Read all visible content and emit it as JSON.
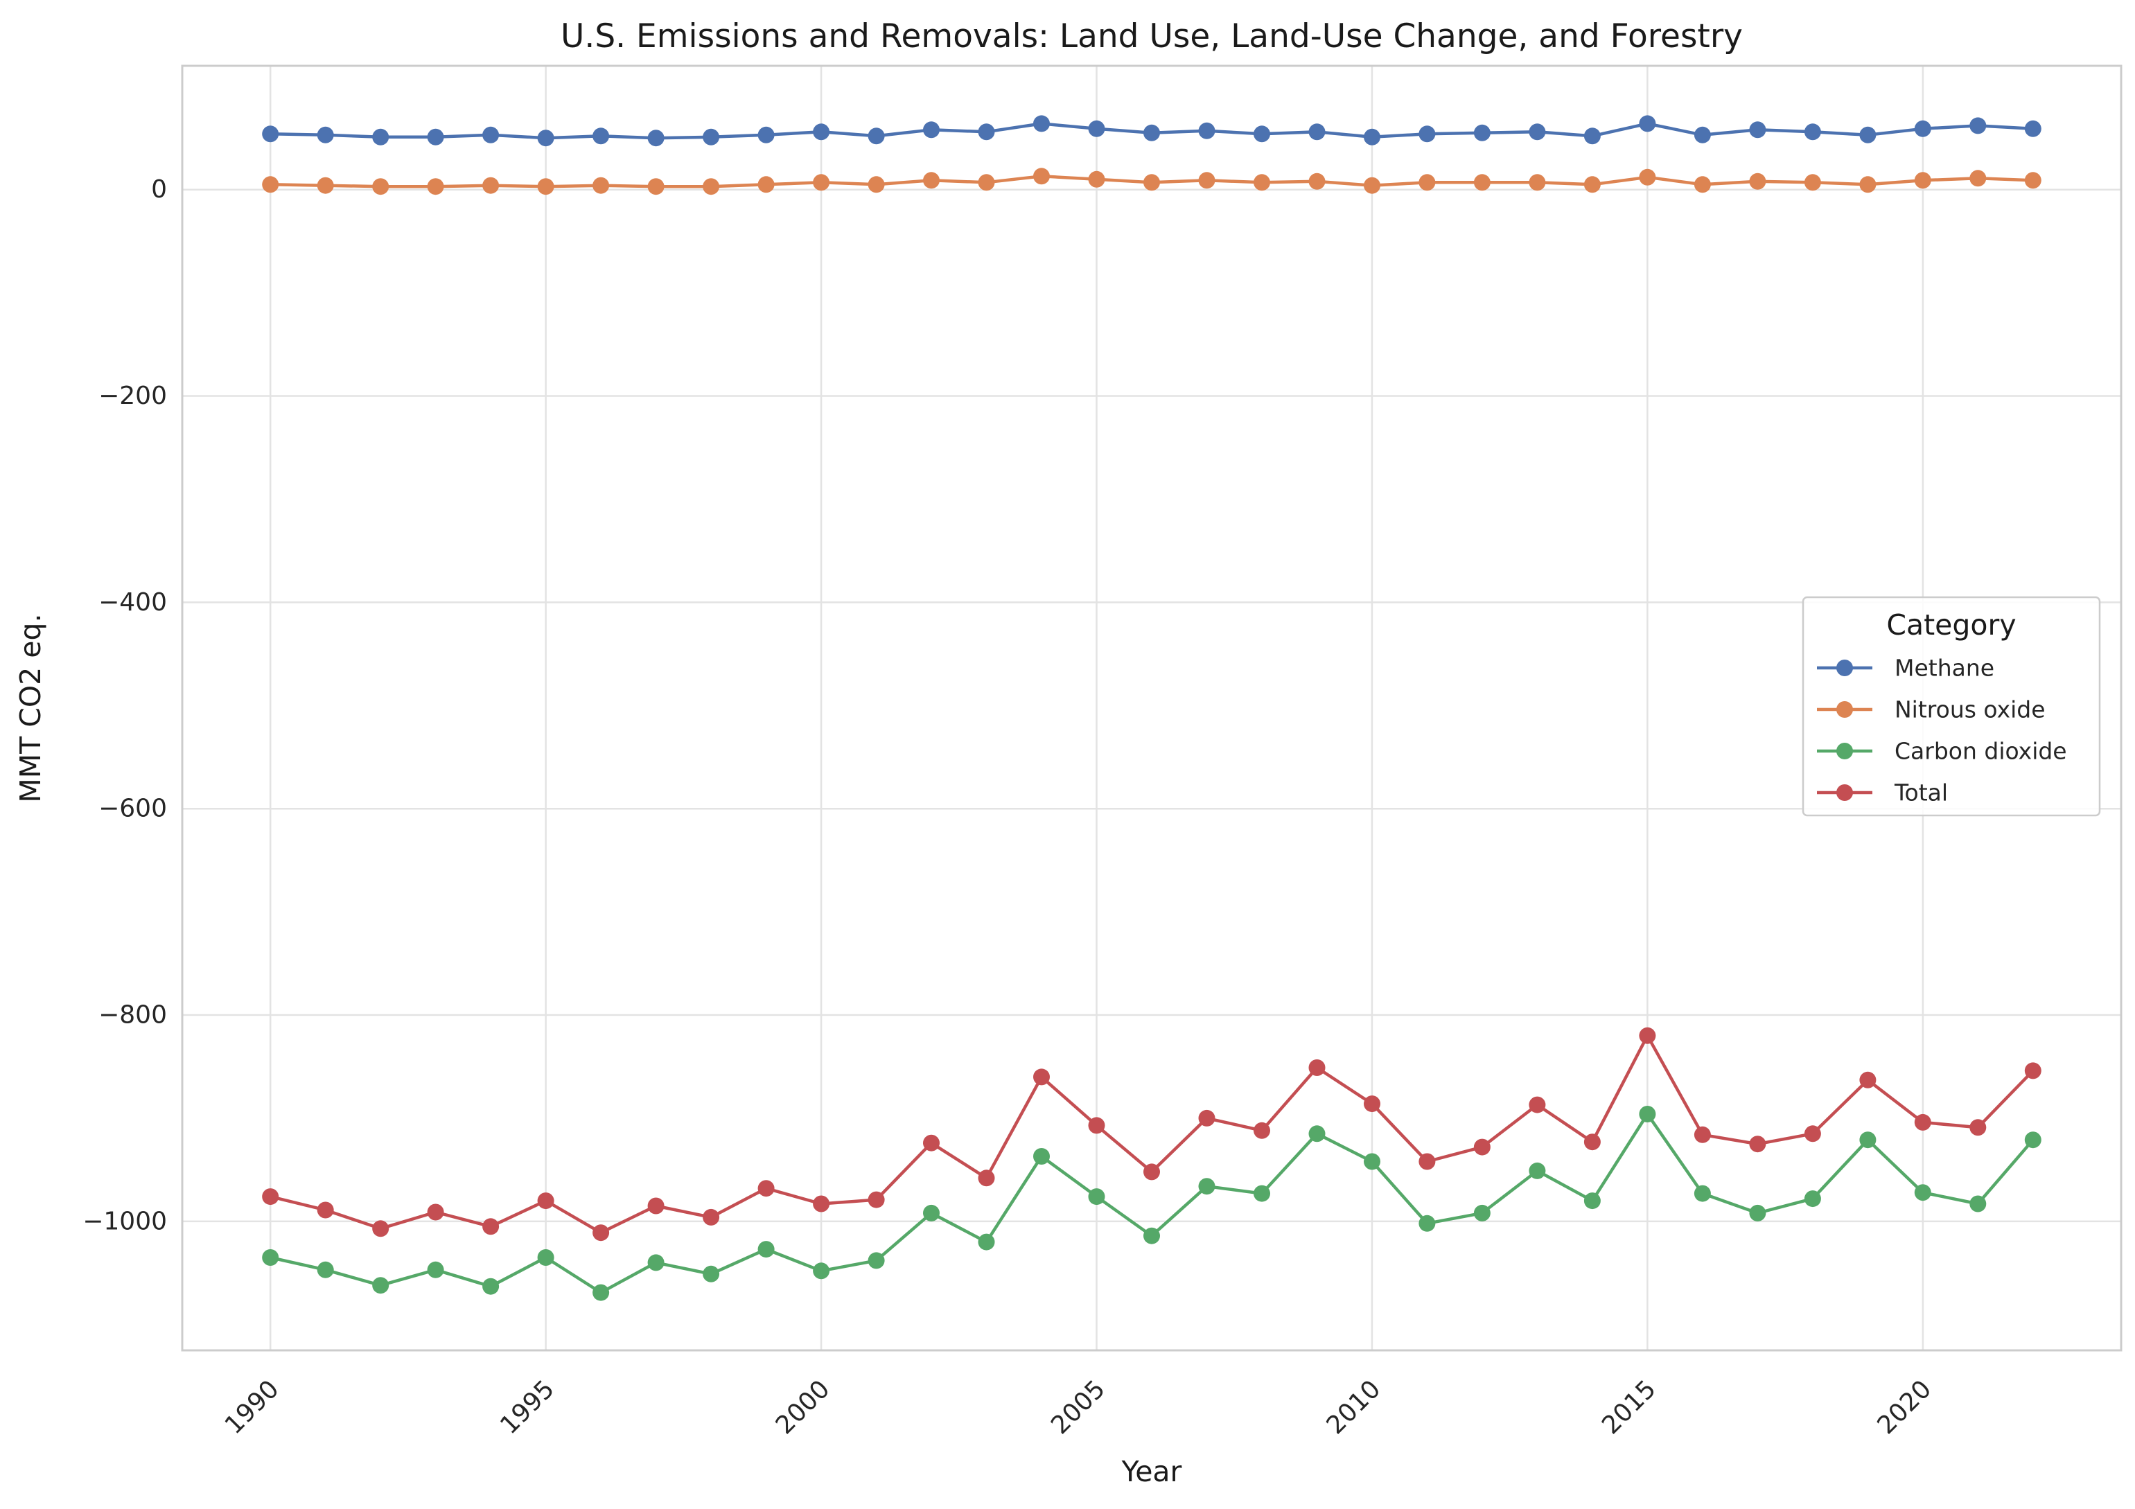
{
  "chart_data": {
    "type": "line",
    "title": "U.S. Emissions and Removals: Land Use, Land-Use Change, and Forestry",
    "xlabel": "Year",
    "ylabel": "MMT CO2 eq.",
    "xlim": [
      1988.4,
      2023.6
    ],
    "ylim": [
      -1125,
      120
    ],
    "xticks": [
      1990,
      1995,
      2000,
      2005,
      2010,
      2015,
      2020
    ],
    "yticks": [
      0,
      -200,
      -400,
      -600,
      -800,
      -1000
    ],
    "ytick_labels": [
      "0",
      "−200",
      "−400",
      "−600",
      "−800",
      "−1000"
    ],
    "grid": true,
    "legend": {
      "title": "Category",
      "position": "right"
    },
    "x": [
      1990,
      1991,
      1992,
      1993,
      1994,
      1995,
      1996,
      1997,
      1998,
      1999,
      2000,
      2001,
      2002,
      2003,
      2004,
      2005,
      2006,
      2007,
      2008,
      2009,
      2010,
      2011,
      2012,
      2013,
      2014,
      2015,
      2016,
      2017,
      2018,
      2019,
      2020,
      2021,
      2022
    ],
    "series": [
      {
        "name": "Methane",
        "color": "#4c72b0",
        "values": [
          54,
          53,
          51,
          51,
          53,
          50,
          52,
          50,
          51,
          53,
          56,
          52,
          58,
          56,
          64,
          59,
          55,
          57,
          54,
          56,
          51,
          54,
          55,
          56,
          52,
          64,
          53,
          58,
          56,
          53,
          59,
          62,
          59
        ]
      },
      {
        "name": "Nitrous oxide",
        "color": "#dd8452",
        "values": [
          5,
          4,
          3,
          3,
          4,
          3,
          4,
          3,
          3,
          5,
          7,
          5,
          9,
          7,
          13,
          10,
          7,
          9,
          7,
          8,
          4,
          7,
          7,
          7,
          5,
          12,
          5,
          8,
          7,
          5,
          9,
          11,
          9
        ]
      },
      {
        "name": "Carbon dioxide",
        "color": "#55a868",
        "values": [
          -1035,
          -1047,
          -1062,
          -1047,
          -1063,
          -1035,
          -1069,
          -1040,
          -1051,
          -1027,
          -1048,
          -1038,
          -992,
          -1020,
          -937,
          -976,
          -1014,
          -966,
          -973,
          -915,
          -942,
          -1002,
          -992,
          -951,
          -980,
          -896,
          -973,
          -992,
          -978,
          -921,
          -972,
          -983,
          -921
        ]
      },
      {
        "name": "Total",
        "color": "#c44e52",
        "values": [
          -976,
          -989,
          -1007,
          -991,
          -1005,
          -980,
          -1011,
          -985,
          -996,
          -968,
          -983,
          -979,
          -924,
          -958,
          -860,
          -907,
          -952,
          -900,
          -912,
          -851,
          -886,
          -942,
          -928,
          -887,
          -923,
          -820,
          -916,
          -925,
          -915,
          -863,
          -904,
          -909,
          -854
        ]
      }
    ]
  }
}
